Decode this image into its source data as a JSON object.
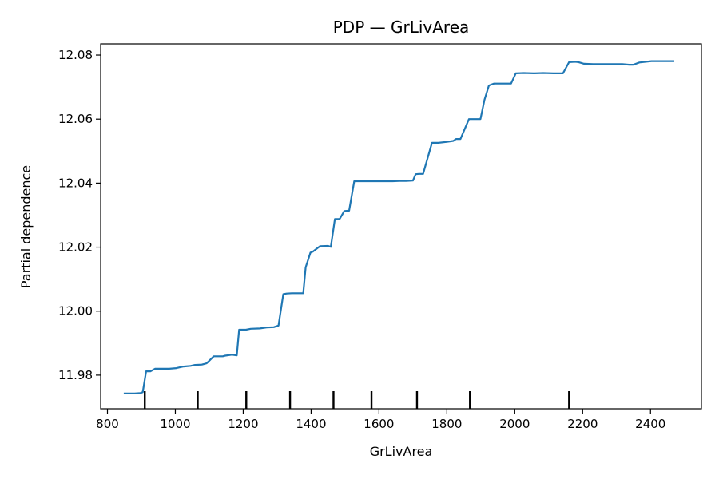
{
  "chart_data": {
    "type": "line",
    "title": "PDP — GrLivArea",
    "xlabel": "GrLivArea",
    "ylabel": "Partial dependence",
    "xlim": [
      780,
      2550
    ],
    "ylim": [
      11.9695,
      12.0835
    ],
    "xticks": [
      800,
      1000,
      1200,
      1400,
      1600,
      1800,
      2000,
      2200,
      2400
    ],
    "yticks": [
      11.98,
      12.0,
      12.02,
      12.04,
      12.06,
      12.08
    ],
    "xtick_labels": [
      "800",
      "1000",
      "1200",
      "1400",
      "1600",
      "1800",
      "2000",
      "2200",
      "2400"
    ],
    "ytick_labels": [
      "11.98",
      "12.00",
      "12.02",
      "12.04",
      "12.06",
      "12.08"
    ],
    "grid": false,
    "series_color": "#1f77b4",
    "series": [
      {
        "x": [
          848,
          880,
          897,
          904,
          914,
          927,
          940,
          961,
          982,
          1003,
          1024,
          1045,
          1058,
          1078,
          1092,
          1099,
          1113,
          1140,
          1147,
          1167,
          1181,
          1188,
          1208,
          1222,
          1249,
          1269,
          1290,
          1304,
          1318,
          1328,
          1343,
          1361,
          1377,
          1384,
          1398,
          1405,
          1426,
          1450,
          1458,
          1470,
          1484,
          1498,
          1512,
          1527,
          1540,
          1560,
          1580,
          1600,
          1620,
          1640,
          1660,
          1680,
          1700,
          1708,
          1718,
          1730,
          1756,
          1764,
          1775,
          1800,
          1819,
          1827,
          1840,
          1865,
          1875,
          1899,
          1911,
          1924,
          1939,
          1960,
          1989,
          2003,
          2027,
          2057,
          2084,
          2114,
          2142,
          2160,
          2178,
          2188,
          2204,
          2231,
          2259,
          2290,
          2317,
          2337,
          2349,
          2367,
          2403,
          2438,
          2470
        ],
        "y": [
          11.9743,
          11.9743,
          11.9744,
          11.9747,
          11.9812,
          11.9812,
          11.982,
          11.982,
          11.982,
          11.9822,
          11.9827,
          11.9829,
          11.9832,
          11.9833,
          11.9837,
          11.9844,
          11.9859,
          11.9859,
          11.9861,
          11.9864,
          11.9862,
          11.9942,
          11.9942,
          11.9945,
          11.9946,
          11.9949,
          11.995,
          11.9955,
          12.0053,
          12.0055,
          12.0056,
          12.0056,
          12.0056,
          12.0137,
          12.0183,
          12.0186,
          12.0203,
          12.0204,
          12.0201,
          12.0288,
          12.0288,
          12.0313,
          12.0314,
          12.0406,
          12.0406,
          12.0406,
          12.0406,
          12.0406,
          12.0406,
          12.0406,
          12.0407,
          12.0407,
          12.0408,
          12.0428,
          12.0429,
          12.0429,
          12.0526,
          12.0526,
          12.0526,
          12.0529,
          12.0532,
          12.0538,
          12.0538,
          12.06,
          12.06,
          12.06,
          12.0661,
          12.0705,
          12.0711,
          12.0711,
          12.0711,
          12.0743,
          12.0744,
          12.0743,
          12.0744,
          12.0743,
          12.0743,
          12.0778,
          12.0779,
          12.0778,
          12.0773,
          12.0772,
          12.0772,
          12.0772,
          12.0772,
          12.077,
          12.077,
          12.0777,
          12.0781,
          12.0781,
          12.0781
        ]
      }
    ],
    "deciles": [
      910,
      1066,
      1209,
      1338,
      1466,
      1578,
      1712,
      1868,
      2160
    ]
  }
}
